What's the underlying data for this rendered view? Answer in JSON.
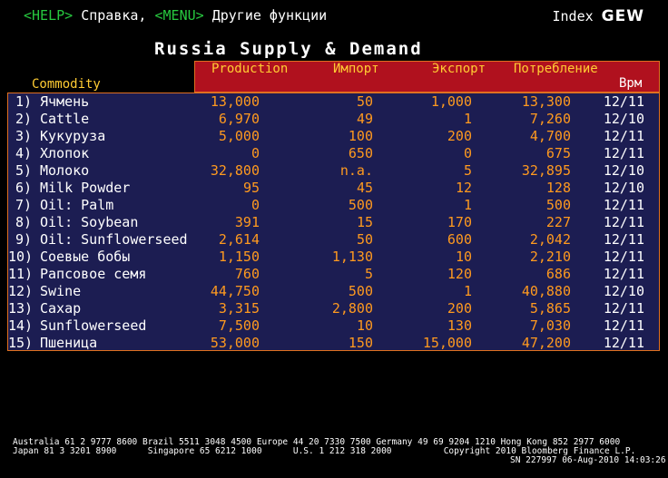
{
  "topbar": {
    "help_key": "<HELP>",
    "help_label": "Справка,",
    "menu_key": "<MENU>",
    "menu_label": "Другие функции"
  },
  "index": {
    "label": "Index",
    "code": "GEW"
  },
  "title": "Russia Supply & Demand",
  "columns": {
    "commodity": "Commodity",
    "production": "Production",
    "import": "Импорт",
    "export": "Экспорт",
    "consumption": "Потребление",
    "time": "Врм"
  },
  "rows": [
    {
      "num": "1)",
      "name": "Ячмень",
      "production": "13,000",
      "import": "50",
      "export": "1,000",
      "consumption": "13,300",
      "time": "12/11"
    },
    {
      "num": "2)",
      "name": "Cattle",
      "production": "6,970",
      "import": "49",
      "export": "1",
      "consumption": "7,260",
      "time": "12/10"
    },
    {
      "num": "3)",
      "name": "Кукуруза",
      "production": "5,000",
      "import": "100",
      "export": "200",
      "consumption": "4,700",
      "time": "12/11"
    },
    {
      "num": "4)",
      "name": "Хлопок",
      "production": "0",
      "import": "650",
      "export": "0",
      "consumption": "675",
      "time": "12/11"
    },
    {
      "num": "5)",
      "name": "Молоко",
      "production": "32,800",
      "import": "n.a.",
      "export": "5",
      "consumption": "32,895",
      "time": "12/10"
    },
    {
      "num": "6)",
      "name": "Milk Powder",
      "production": "95",
      "import": "45",
      "export": "12",
      "consumption": "128",
      "time": "12/10"
    },
    {
      "num": "7)",
      "name": "Oil: Palm",
      "production": "0",
      "import": "500",
      "export": "1",
      "consumption": "500",
      "time": "12/11"
    },
    {
      "num": "8)",
      "name": "Oil: Soybean",
      "production": "391",
      "import": "15",
      "export": "170",
      "consumption": "227",
      "time": "12/11"
    },
    {
      "num": "9)",
      "name": "Oil: Sunflowerseed",
      "production": "2,614",
      "import": "50",
      "export": "600",
      "consumption": "2,042",
      "time": "12/11"
    },
    {
      "num": "10)",
      "name": "Соевые бобы",
      "production": "1,150",
      "import": "1,130",
      "export": "10",
      "consumption": "2,210",
      "time": "12/11"
    },
    {
      "num": "11)",
      "name": "Рапсовое семя",
      "production": "760",
      "import": "5",
      "export": "120",
      "consumption": "686",
      "time": "12/11"
    },
    {
      "num": "12)",
      "name": "Swine",
      "production": "44,750",
      "import": "500",
      "export": "1",
      "consumption": "40,880",
      "time": "12/10"
    },
    {
      "num": "13)",
      "name": "Сахар",
      "production": "3,315",
      "import": "2,800",
      "export": "200",
      "consumption": "5,865",
      "time": "12/11"
    },
    {
      "num": "14)",
      "name": "Sunflowerseed",
      "production": "7,500",
      "import": "10",
      "export": "130",
      "consumption": "7,030",
      "time": "12/11"
    },
    {
      "num": "15)",
      "name": "Пшеница",
      "production": "53,000",
      "import": "150",
      "export": "15,000",
      "consumption": "47,200",
      "time": "12/11"
    }
  ],
  "footer": {
    "line1": "Australia 61 2 9777 8600 Brazil 5511 3048 4500 Europe 44 20 7330 7500 Germany 49 69 9204 1210 Hong Kong 852 2977 6000",
    "line2": "Japan 81 3 3201 8900      Singapore 65 6212 1000      U.S. 1 212 318 2000          Copyright 2010 Bloomberg Finance L.P.",
    "line3": "SN 227997 06-Aug-2010 14:03:26"
  }
}
